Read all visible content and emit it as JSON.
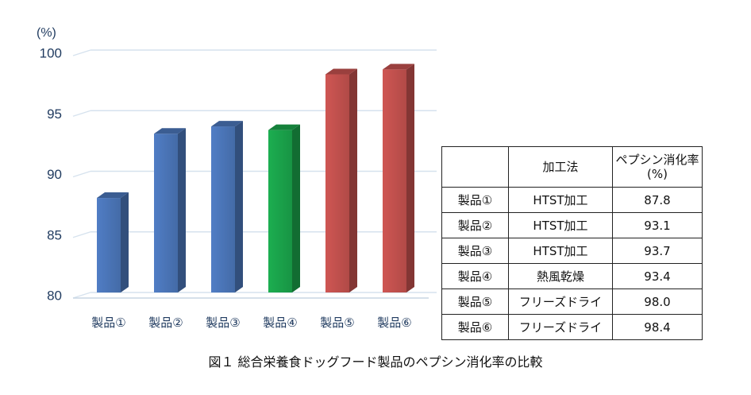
{
  "chart_data": {
    "type": "bar",
    "unit_label": "(%)",
    "categories": [
      "製品①",
      "製品②",
      "製品③",
      "製品④",
      "製品⑤",
      "製品⑥"
    ],
    "values": [
      87.8,
      93.1,
      93.7,
      93.4,
      98.0,
      98.4
    ],
    "bar_colors": [
      "#4a74b6",
      "#4a74b6",
      "#4a74b6",
      "#1aa14a",
      "#c0504d",
      "#c0504d"
    ],
    "ylim": [
      80,
      100
    ],
    "yticks": [
      80,
      85,
      90,
      95,
      100
    ],
    "grid": true,
    "style": "3d-column"
  },
  "table": {
    "headers": [
      "",
      "加工法",
      "ペプシン消化率\n(%)"
    ],
    "rows": [
      [
        "製品①",
        "HTST加工",
        "87.8"
      ],
      [
        "製品②",
        "HTST加工",
        "93.1"
      ],
      [
        "製品③",
        "HTST加工",
        "93.7"
      ],
      [
        "製品④",
        "熱風乾燥",
        "93.4"
      ],
      [
        "製品⑤",
        "フリーズドライ",
        "98.0"
      ],
      [
        "製品⑥",
        "フリーズドライ",
        "98.4"
      ]
    ]
  },
  "caption": "図１ 総合栄養食ドッグフード製品のペプシン消化率の比較"
}
